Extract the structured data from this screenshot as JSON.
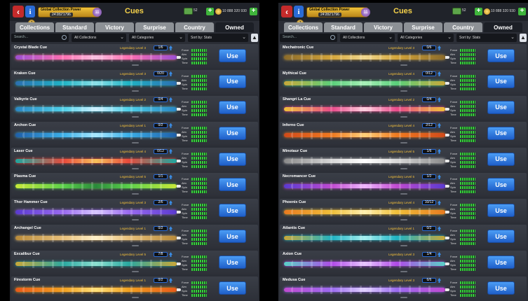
{
  "screen_title": "Cues",
  "power": {
    "title": "Global Collection Power",
    "value": "24'282'1796",
    "badge": "11"
  },
  "cash": {
    "value": "52"
  },
  "coins": {
    "value": "10 888 320 930"
  },
  "medal": "7",
  "tabs": [
    "Collections",
    "Standard",
    "Victory",
    "Surprise",
    "Country",
    "Owned"
  ],
  "active_tab": "Owned",
  "filters": {
    "search_placeholder": "Search...",
    "collections": "All Collections",
    "categories": "All Categories",
    "sort": "Sort by: Stats"
  },
  "stat_labels": [
    "Force",
    "Aim",
    "Spin",
    "Time"
  ],
  "use_label": "Use",
  "icons": {
    "back": "back-arrow-icon",
    "info": "info-icon",
    "search": "search-icon",
    "up": "sort-up-icon",
    "upgrade": "upgrade-arrow-icon"
  },
  "left_cues": [
    {
      "name": "Crystal Blade Cue",
      "level": "Legendary Level 3",
      "count": "1/6",
      "colors": [
        "#ff6fb0",
        "#9b4fd1",
        "#f7c0e0"
      ]
    },
    {
      "name": "Kraken Cue",
      "level": "Legendary Level 3",
      "count": "0/20",
      "colors": [
        "#1fb3c4",
        "#2c6fb0",
        "#8de0e8"
      ]
    },
    {
      "name": "Valkyrie Cue",
      "level": "Legendary Level 2",
      "count": "0/4",
      "colors": [
        "#4fd0e8",
        "#2a86c4",
        "#cfefff"
      ]
    },
    {
      "name": "Archon Cue",
      "level": "Legendary Level 1",
      "count": "0/2",
      "colors": [
        "#3bb0e8",
        "#1f5fa8",
        "#a8e8ff"
      ]
    },
    {
      "name": "Laser Cue",
      "level": "Legendary Level 4",
      "count": "0/12",
      "colors": [
        "#e84a3b",
        "#1fa8a0",
        "#f7c05a"
      ]
    },
    {
      "name": "Plasma Cue",
      "level": "Legendary Level 5",
      "count": "1/1",
      "colors": [
        "#5ad04a",
        "#c8e83a",
        "#2a8a3a"
      ]
    },
    {
      "name": "Thor Hammer Cue",
      "level": "Legendary Level 3",
      "count": "2/6",
      "colors": [
        "#9b6bf0",
        "#5a3ad0",
        "#d8c8ff"
      ]
    },
    {
      "name": "Archangel Cue",
      "level": "Legendary Level 1",
      "count": "0/2",
      "colors": [
        "#e8c07a",
        "#b88a3a",
        "#fff0c8"
      ]
    },
    {
      "name": "Excalibur Cue",
      "level": "Legendary Level 5",
      "count": "7/8",
      "colors": [
        "#2aa8a0",
        "#c8a83a",
        "#8ee0d0"
      ]
    },
    {
      "name": "Firestorm Cue",
      "level": "Legendary Level 1",
      "count": "0/2",
      "colors": [
        "#f0a020",
        "#e85a1a",
        "#ffe07a"
      ]
    }
  ],
  "right_cues": [
    {
      "name": "Mechatronic Cue",
      "level": "Legendary Level 3",
      "count": "0/6",
      "colors": [
        "#d4a53a",
        "#8a6a2a",
        "#f0d890"
      ]
    },
    {
      "name": "Mythical Cue",
      "level": "Legendary Level 4",
      "count": "0/12",
      "colors": [
        "#5ad07a",
        "#c8a83a",
        "#a8f0b8"
      ]
    },
    {
      "name": "Shangri La Cue",
      "level": "Legendary Level 2",
      "count": "0/4",
      "colors": [
        "#e84a8a",
        "#f0c03a",
        "#ffd0e0"
      ]
    },
    {
      "name": "Inferno Cue",
      "level": "Legendary Level 4",
      "count": "2/12",
      "colors": [
        "#f07a20",
        "#d04a1a",
        "#ffd07a"
      ]
    },
    {
      "name": "Minotaur Cue",
      "level": "Legendary Level 5",
      "count": "1/6",
      "colors": [
        "#d8d8d8",
        "#8a8a8a",
        "#ffffff"
      ]
    },
    {
      "name": "Necromancer Cue",
      "level": "Legendary Level 5",
      "count": "1/2",
      "colors": [
        "#c04ad0",
        "#5a3ad0",
        "#f0b8ff"
      ]
    },
    {
      "name": "Phoenix Cue",
      "level": "Legendary Level 4",
      "count": "10/12",
      "colors": [
        "#f0c03a",
        "#e87a20",
        "#fff0b0"
      ]
    },
    {
      "name": "Atlantis Cue",
      "level": "Legendary Level 1",
      "count": "0/2",
      "colors": [
        "#1fb3c4",
        "#c8a83a",
        "#a8f0f0"
      ]
    },
    {
      "name": "Axion Cue",
      "level": "Legendary Level 3",
      "count": "1/4",
      "colors": [
        "#b04ae8",
        "#5ad0c8",
        "#e8c8ff"
      ]
    },
    {
      "name": "Medusa Cue",
      "level": "Legendary Level 3",
      "count": "6/6",
      "colors": [
        "#9b6bf0",
        "#c04ad0",
        "#e0d0ff"
      ]
    }
  ]
}
